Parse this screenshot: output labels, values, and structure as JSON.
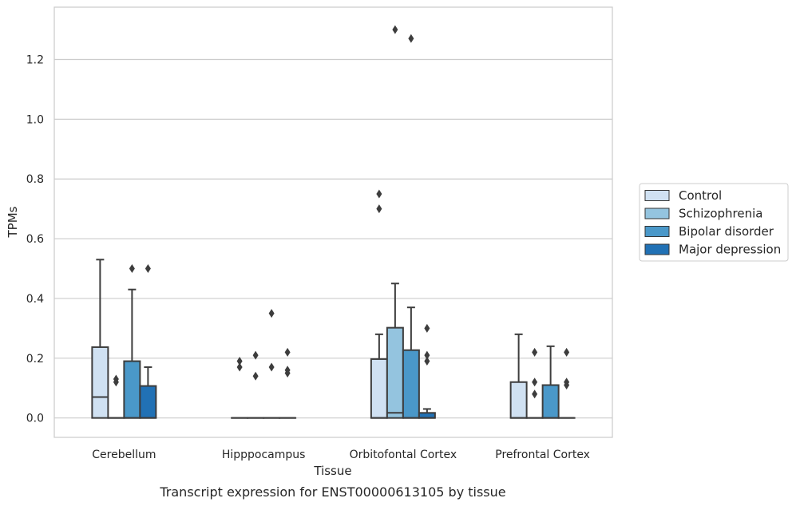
{
  "chart_data": {
    "type": "box",
    "caption": "Transcript expression for ENST00000613105 by tissue",
    "xlabel": "Tissue",
    "ylabel": "TPMs",
    "ylim": [
      -0.065,
      1.375
    ],
    "yticks": [
      0.0,
      0.2,
      0.4,
      0.6,
      0.8,
      1.0,
      1.2
    ],
    "ytick_labels": [
      "0.0",
      "0.2",
      "0.4",
      "0.6",
      "0.8",
      "1.0",
      "1.2"
    ],
    "grid": "horizontal",
    "legend_position": "right",
    "categories": [
      "Cerebellum",
      "Hipppocampus",
      "Orbitofontal Cortex",
      "Prefrontal Cortex"
    ],
    "series": [
      {
        "name": "Control",
        "color": "#d0e1f2",
        "boxes": [
          {
            "whislo": 0.0,
            "q1": 0.0,
            "med": 0.07,
            "q3": 0.237,
            "whishi": 0.53,
            "fliers": []
          },
          {
            "whislo": 0.0,
            "q1": 0.0,
            "med": 0.0,
            "q3": 0.0,
            "whishi": 0.0,
            "fliers": [
              0.17,
              0.19
            ]
          },
          {
            "whislo": 0.0,
            "q1": 0.0,
            "med": 0.0,
            "q3": 0.197,
            "whishi": 0.28,
            "fliers": [
              0.7,
              0.75
            ]
          },
          {
            "whislo": 0.0,
            "q1": 0.0,
            "med": 0.0,
            "q3": 0.12,
            "whishi": 0.28,
            "fliers": []
          }
        ]
      },
      {
        "name": "Schizophrenia",
        "color": "#94c4df",
        "boxes": [
          {
            "whislo": 0.0,
            "q1": 0.0,
            "med": 0.0,
            "q3": 0.0,
            "whishi": 0.0,
            "fliers": [
              0.12,
              0.13
            ]
          },
          {
            "whislo": 0.0,
            "q1": 0.0,
            "med": 0.0,
            "q3": 0.0,
            "whishi": 0.0,
            "fliers": [
              0.14,
              0.21
            ]
          },
          {
            "whislo": 0.0,
            "q1": 0.0,
            "med": 0.017,
            "q3": 0.302,
            "whishi": 0.45,
            "fliers": [
              1.3
            ]
          },
          {
            "whislo": 0.0,
            "q1": 0.0,
            "med": 0.0,
            "q3": 0.0,
            "whishi": 0.0,
            "fliers": [
              0.08,
              0.12,
              0.22
            ]
          }
        ]
      },
      {
        "name": "Bipolar disorder",
        "color": "#4a98c9",
        "boxes": [
          {
            "whislo": 0.0,
            "q1": 0.0,
            "med": 0.0,
            "q3": 0.19,
            "whishi": 0.43,
            "fliers": [
              0.5
            ]
          },
          {
            "whislo": 0.0,
            "q1": 0.0,
            "med": 0.0,
            "q3": 0.0,
            "whishi": 0.0,
            "fliers": [
              0.17,
              0.35
            ]
          },
          {
            "whislo": 0.0,
            "q1": 0.0,
            "med": 0.0,
            "q3": 0.227,
            "whishi": 0.37,
            "fliers": [
              1.27
            ]
          },
          {
            "whislo": 0.0,
            "q1": 0.0,
            "med": 0.0,
            "q3": 0.11,
            "whishi": 0.24,
            "fliers": []
          }
        ]
      },
      {
        "name": "Major depression",
        "color": "#2171b5",
        "boxes": [
          {
            "whislo": 0.0,
            "q1": 0.0,
            "med": 0.0,
            "q3": 0.107,
            "whishi": 0.17,
            "fliers": [
              0.5
            ]
          },
          {
            "whislo": 0.0,
            "q1": 0.0,
            "med": 0.0,
            "q3": 0.0,
            "whishi": 0.0,
            "fliers": [
              0.15,
              0.16,
              0.22
            ]
          },
          {
            "whislo": 0.0,
            "q1": 0.0,
            "med": 0.0,
            "q3": 0.017,
            "whishi": 0.03,
            "fliers": [
              0.19,
              0.21,
              0.3
            ]
          },
          {
            "whislo": 0.0,
            "q1": 0.0,
            "med": 0.0,
            "q3": 0.0,
            "whishi": 0.0,
            "fliers": [
              0.11,
              0.12,
              0.22
            ]
          }
        ]
      }
    ]
  }
}
